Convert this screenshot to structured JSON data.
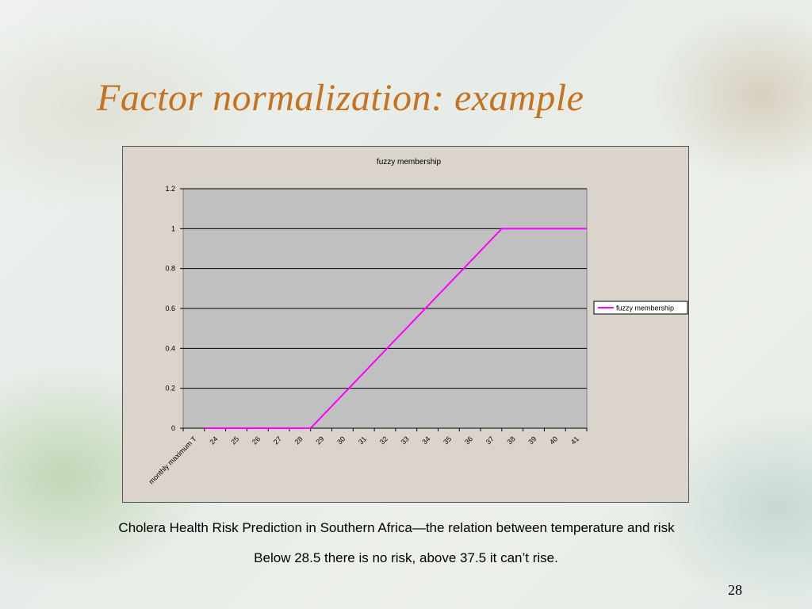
{
  "slide": {
    "title": "Factor normalization: example",
    "caption_line1": "Cholera Health Risk Prediction in Southern Africa—the relation between temperature and risk",
    "caption_line2": "Below 28.5 there is no risk, above 37.5 it can’t rise.",
    "page_number": "28"
  },
  "chart_data": {
    "type": "line",
    "title": "fuzzy membership",
    "xlabel": "monthly maximum T",
    "ylabel": "",
    "categories": [
      "24",
      "25",
      "26",
      "27",
      "28",
      "29",
      "30",
      "31",
      "32",
      "33",
      "34",
      "35",
      "36",
      "37",
      "38",
      "39",
      "40",
      "41"
    ],
    "x_tick_labels": [
      "monthly maximum T",
      "24",
      "25",
      "26",
      "27",
      "28",
      "29",
      "30",
      "31",
      "32",
      "33",
      "34",
      "35",
      "36",
      "37",
      "38",
      "39",
      "40",
      "41"
    ],
    "ylim": [
      0,
      1.2
    ],
    "yticks": [
      "0",
      "0.2",
      "0.4",
      "0.6",
      "0.8",
      "1",
      "1.2"
    ],
    "series": [
      {
        "name": "fuzzy membership",
        "color": "#ff00ff",
        "x": [
          23.5,
          28.5,
          37.5,
          41.5
        ],
        "y": [
          0,
          0,
          1,
          1
        ]
      }
    ],
    "grid": true,
    "legend": "right",
    "plot_background": "#c0c0c0"
  }
}
